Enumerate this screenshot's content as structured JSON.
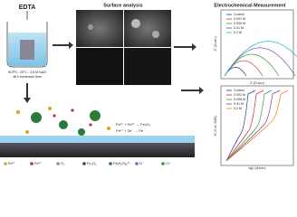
{
  "beaker": {
    "label": "EDTA",
    "caption_lines": [
      "SCPS - 25°C - 3.6 M NaCl",
      "48 h immersion time"
    ]
  },
  "surface": {
    "title": "Surface analysis"
  },
  "electrochem": {
    "title": "Electrochemical Measurement",
    "nyquist": {
      "x_label": "Z' (Ω.cm²)",
      "y_label": "-Z'' (Ω.cm²)",
      "legend": [
        "Control",
        "0.001 M",
        "0.005 M",
        "0.01 M",
        "0.2 M"
      ]
    },
    "polarization": {
      "x_label": "log i (A/cm²)",
      "y_label": "E (V vs. SCE)",
      "legend": [
        "Control",
        "0.001 M",
        "0.005 M",
        "0.01 M",
        "0.2 M"
      ]
    }
  },
  "mechanism": {
    "equations": [
      "Fe²⁺ + Fe³⁺ → Fe₃O₄",
      "Fe²⁺ + 2e⁻ → Fe"
    ],
    "legend": [
      "Fe²⁺",
      "Fe³⁺",
      "O₂",
      "Fe₃O₄",
      "Fe(H₂O)₆²⁺",
      "N⁻",
      "Cl⁻"
    ]
  }
}
